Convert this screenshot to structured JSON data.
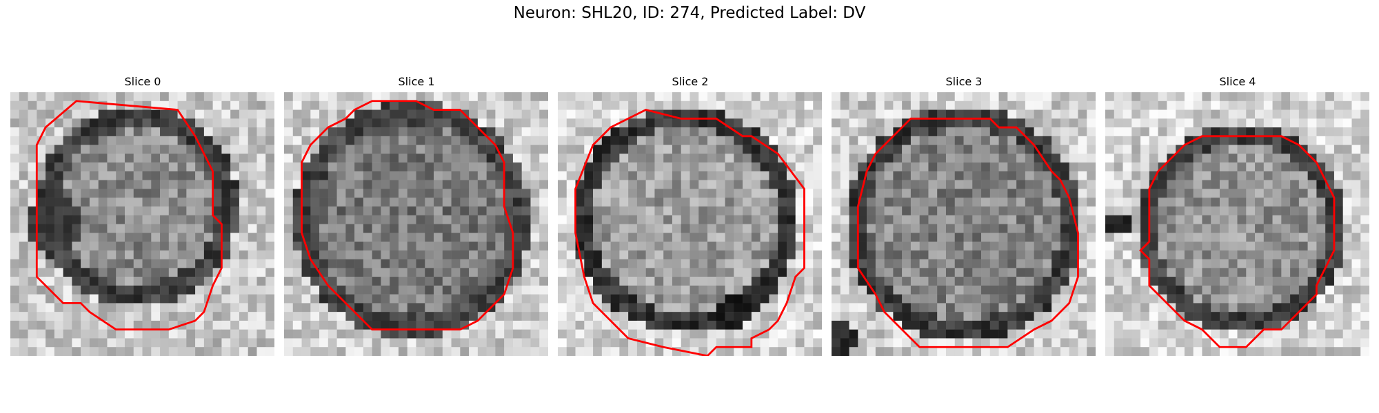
{
  "figure": {
    "title": "Neuron: SHL20, ID: 274, Predicted Label: DV"
  },
  "panels": [
    {
      "title": "Slice 0"
    },
    {
      "title": "Slice 1"
    },
    {
      "title": "Slice 2"
    },
    {
      "title": "Slice 3"
    },
    {
      "title": "Slice 4"
    }
  ],
  "colors": {
    "contour": "#ff0000",
    "background": "#ffffff"
  }
}
